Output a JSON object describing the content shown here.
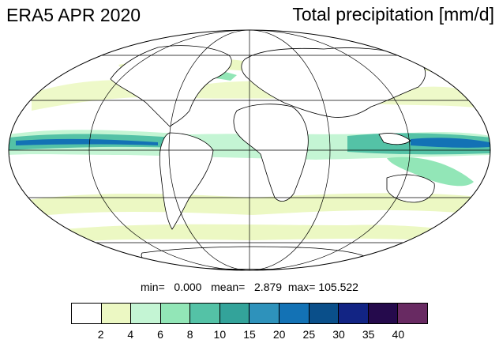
{
  "header": {
    "left_title": "ERA5 APR 2020",
    "right_title": "Total precipitation [mm/d]"
  },
  "stats": {
    "min_label": "min=",
    "min_value": "0.000",
    "mean_label": "mean=",
    "mean_value": "2.879",
    "max_label": "max=",
    "max_value": "105.522"
  },
  "colorbar": {
    "colors": [
      "#ffffff",
      "#ecf8c3",
      "#c4f5d4",
      "#92e6b7",
      "#54c2a6",
      "#33a39a",
      "#2e92bb",
      "#1372b5",
      "#0a4f8a",
      "#122484",
      "#250a4c",
      "#682a62"
    ],
    "tick_labels": [
      "2",
      "4",
      "6",
      "8",
      "10",
      "15",
      "20",
      "25",
      "30",
      "35",
      "40"
    ]
  },
  "map": {
    "projection": "mollweide",
    "land_color": "#ffffff",
    "coastline_color": "#000000",
    "grid_color": "#000000"
  }
}
